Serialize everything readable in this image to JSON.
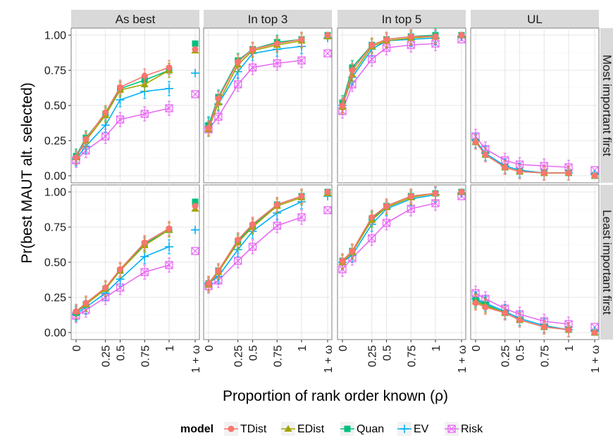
{
  "chart_data": {
    "type": "line",
    "xlabel": "Proportion of rank order known (ρ)",
    "ylabel": "Pr(best MAUT alt. selected)",
    "x_ticks": [
      "0",
      "0.25",
      "0.5",
      "0.75",
      "1",
      "1 + ω"
    ],
    "y_ticks": [
      "0.00",
      "0.25",
      "0.50",
      "0.75",
      "1.00"
    ],
    "ylim": [
      -0.05,
      1.05
    ],
    "x": [
      0,
      0.1,
      0.3,
      0.45,
      0.7,
      0.95
    ],
    "x_extra_label": "1 + ω",
    "columns": [
      "As best",
      "In top 3",
      "In top 5",
      "UL"
    ],
    "rows": [
      "Most important first",
      "Least important first"
    ],
    "legend": {
      "title": "model",
      "position": "bottom",
      "entries": [
        "TDist",
        "EDist",
        "Quan",
        "EV",
        "Risk"
      ]
    },
    "colors": {
      "TDist": "#F8766D",
      "EDist": "#A3A500",
      "Quan": "#00BF7D",
      "EV": "#00B0F6",
      "Risk": "#E76BF3"
    },
    "panels": [
      {
        "row": "Most important first",
        "column": "As best",
        "series": [
          {
            "name": "TDist",
            "values": [
              0.13,
              0.26,
              0.45,
              0.63,
              0.71,
              0.77
            ],
            "extra": 0.9
          },
          {
            "name": "EDist",
            "values": [
              0.13,
              0.25,
              0.43,
              0.61,
              0.65,
              0.75
            ],
            "extra": 0.89
          },
          {
            "name": "Quan",
            "values": [
              0.14,
              0.27,
              0.44,
              0.62,
              0.68,
              0.75
            ],
            "extra": 0.94
          },
          {
            "name": "EV",
            "values": [
              0.12,
              0.21,
              0.36,
              0.54,
              0.6,
              0.62
            ],
            "extra": 0.73
          },
          {
            "name": "Risk",
            "values": [
              0.11,
              0.18,
              0.28,
              0.4,
              0.44,
              0.48
            ],
            "extra": 0.58
          }
        ]
      },
      {
        "row": "Most important first",
        "column": "In top 3",
        "series": [
          {
            "name": "TDist",
            "values": [
              0.34,
              0.55,
              0.81,
              0.9,
              0.94,
              0.97
            ],
            "extra": 1.0
          },
          {
            "name": "EDist",
            "values": [
              0.33,
              0.52,
              0.79,
              0.89,
              0.93,
              0.96
            ],
            "extra": 0.99
          },
          {
            "name": "Quan",
            "values": [
              0.36,
              0.56,
              0.82,
              0.9,
              0.95,
              0.97
            ],
            "extra": 1.0
          },
          {
            "name": "EV",
            "values": [
              0.37,
              0.51,
              0.74,
              0.87,
              0.9,
              0.92
            ],
            "extra": 0.98
          },
          {
            "name": "Risk",
            "values": [
              0.33,
              0.42,
              0.65,
              0.77,
              0.8,
              0.82
            ],
            "extra": 0.87
          }
        ]
      },
      {
        "row": "Most important first",
        "column": "In top 5",
        "series": [
          {
            "name": "TDist",
            "values": [
              0.5,
              0.75,
              0.93,
              0.97,
              0.99,
              0.99
            ],
            "extra": 1.0
          },
          {
            "name": "EDist",
            "values": [
              0.49,
              0.72,
              0.92,
              0.96,
              0.98,
              0.99
            ],
            "extra": 1.0
          },
          {
            "name": "Quan",
            "values": [
              0.52,
              0.77,
              0.93,
              0.97,
              0.99,
              1.0
            ],
            "extra": 1.0
          },
          {
            "name": "EV",
            "values": [
              0.5,
              0.7,
              0.9,
              0.96,
              0.97,
              0.98
            ],
            "extra": 0.99
          },
          {
            "name": "Risk",
            "values": [
              0.46,
              0.65,
              0.83,
              0.91,
              0.93,
              0.94
            ],
            "extra": 0.97
          }
        ]
      },
      {
        "row": "Most important first",
        "column": "UL",
        "series": [
          {
            "name": "TDist",
            "values": [
              0.24,
              0.15,
              0.06,
              0.03,
              0.02,
              0.02
            ],
            "extra": 0.0
          },
          {
            "name": "EDist",
            "values": [
              0.24,
              0.15,
              0.06,
              0.03,
              0.02,
              0.02
            ],
            "extra": 0.0
          },
          {
            "name": "Quan",
            "values": [
              0.24,
              0.15,
              0.06,
              0.03,
              0.02,
              0.02
            ],
            "extra": 0.0
          },
          {
            "name": "EV",
            "values": [
              0.25,
              0.16,
              0.07,
              0.04,
              0.02,
              0.02
            ],
            "extra": 0.01
          },
          {
            "name": "Risk",
            "values": [
              0.28,
              0.19,
              0.11,
              0.08,
              0.07,
              0.06
            ],
            "extra": 0.04
          }
        ]
      },
      {
        "row": "Least important first",
        "column": "As best",
        "series": [
          {
            "name": "TDist",
            "values": [
              0.15,
              0.21,
              0.32,
              0.45,
              0.64,
              0.74
            ],
            "extra": 0.9
          },
          {
            "name": "EDist",
            "values": [
              0.15,
              0.2,
              0.31,
              0.44,
              0.62,
              0.73
            ],
            "extra": 0.88
          },
          {
            "name": "Quan",
            "values": [
              0.14,
              0.2,
              0.31,
              0.44,
              0.63,
              0.73
            ],
            "extra": 0.93
          },
          {
            "name": "EV",
            "values": [
              0.13,
              0.18,
              0.28,
              0.38,
              0.54,
              0.61
            ],
            "extra": 0.73
          },
          {
            "name": "Risk",
            "values": [
              0.12,
              0.16,
              0.25,
              0.32,
              0.43,
              0.48
            ],
            "extra": 0.58
          }
        ]
      },
      {
        "row": "Least important first",
        "column": "In top 3",
        "series": [
          {
            "name": "TDist",
            "values": [
              0.35,
              0.44,
              0.66,
              0.77,
              0.91,
              0.97
            ],
            "extra": 1.0
          },
          {
            "name": "EDist",
            "values": [
              0.34,
              0.43,
              0.64,
              0.75,
              0.9,
              0.96
            ],
            "extra": 0.99
          },
          {
            "name": "Quan",
            "values": [
              0.35,
              0.44,
              0.65,
              0.76,
              0.91,
              0.97
            ],
            "extra": 1.0
          },
          {
            "name": "EV",
            "values": [
              0.35,
              0.4,
              0.59,
              0.72,
              0.85,
              0.93
            ],
            "extra": 0.97
          },
          {
            "name": "Risk",
            "values": [
              0.33,
              0.37,
              0.51,
              0.61,
              0.76,
              0.82
            ],
            "extra": 0.87
          }
        ]
      },
      {
        "row": "Least important first",
        "column": "In top 5",
        "series": [
          {
            "name": "TDist",
            "values": [
              0.51,
              0.58,
              0.82,
              0.9,
              0.97,
              0.99
            ],
            "extra": 1.0
          },
          {
            "name": "EDist",
            "values": [
              0.5,
              0.57,
              0.8,
              0.89,
              0.96,
              0.99
            ],
            "extra": 1.0
          },
          {
            "name": "Quan",
            "values": [
              0.51,
              0.58,
              0.81,
              0.9,
              0.97,
              0.99
            ],
            "extra": 1.0
          },
          {
            "name": "EV",
            "values": [
              0.5,
              0.55,
              0.77,
              0.88,
              0.95,
              0.98
            ],
            "extra": 0.99
          },
          {
            "name": "Risk",
            "values": [
              0.45,
              0.53,
              0.67,
              0.78,
              0.88,
              0.92
            ],
            "extra": 0.97
          }
        ]
      },
      {
        "row": "Least important first",
        "column": "UL",
        "series": [
          {
            "name": "TDist",
            "values": [
              0.21,
              0.18,
              0.14,
              0.09,
              0.04,
              0.02
            ],
            "extra": 0.0
          },
          {
            "name": "EDist",
            "values": [
              0.22,
              0.19,
              0.14,
              0.09,
              0.04,
              0.02
            ],
            "extra": 0.0
          },
          {
            "name": "Quan",
            "values": [
              0.23,
              0.2,
              0.14,
              0.09,
              0.04,
              0.02
            ],
            "extra": 0.0
          },
          {
            "name": "EV",
            "values": [
              0.24,
              0.21,
              0.15,
              0.1,
              0.05,
              0.02
            ],
            "extra": 0.01
          },
          {
            "name": "Risk",
            "values": [
              0.28,
              0.24,
              0.17,
              0.13,
              0.08,
              0.06
            ],
            "extra": 0.04
          }
        ]
      }
    ]
  }
}
